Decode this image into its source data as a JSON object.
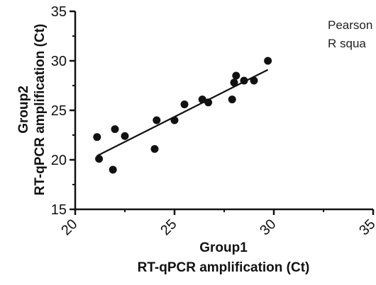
{
  "chart_data": {
    "type": "scatter",
    "title": "",
    "xlabel": [
      "Group1",
      "RT-qPCR amplification (Ct)"
    ],
    "ylabel": [
      "Group2",
      "RT-qPCR amplification (Ct)"
    ],
    "xlim": [
      20,
      35
    ],
    "ylim": [
      15,
      35
    ],
    "xticks": [
      "20",
      "25",
      "30",
      "35"
    ],
    "yticks": [
      "15",
      "20",
      "25",
      "30",
      "35"
    ],
    "grid": false,
    "annotations": [
      "Pearson",
      "R squa"
    ],
    "points": [
      {
        "x": 21.1,
        "y": 22.3
      },
      {
        "x": 21.2,
        "y": 20.1
      },
      {
        "x": 21.9,
        "y": 19.0
      },
      {
        "x": 22.0,
        "y": 23.1
      },
      {
        "x": 22.5,
        "y": 22.4
      },
      {
        "x": 24.0,
        "y": 21.1
      },
      {
        "x": 24.1,
        "y": 24.0
      },
      {
        "x": 25.0,
        "y": 24.0
      },
      {
        "x": 25.5,
        "y": 25.6
      },
      {
        "x": 26.4,
        "y": 26.1
      },
      {
        "x": 26.7,
        "y": 25.8
      },
      {
        "x": 27.9,
        "y": 26.1
      },
      {
        "x": 28.0,
        "y": 27.8
      },
      {
        "x": 28.1,
        "y": 28.5
      },
      {
        "x": 28.5,
        "y": 28.0
      },
      {
        "x": 29.0,
        "y": 28.0
      },
      {
        "x": 29.7,
        "y": 30.0
      }
    ],
    "trendline": {
      "x": [
        21.1,
        29.7
      ],
      "y": [
        20.4,
        29.1
      ]
    },
    "colors": {
      "points": "#111111",
      "line": "#111111",
      "axes": "#111111"
    }
  }
}
